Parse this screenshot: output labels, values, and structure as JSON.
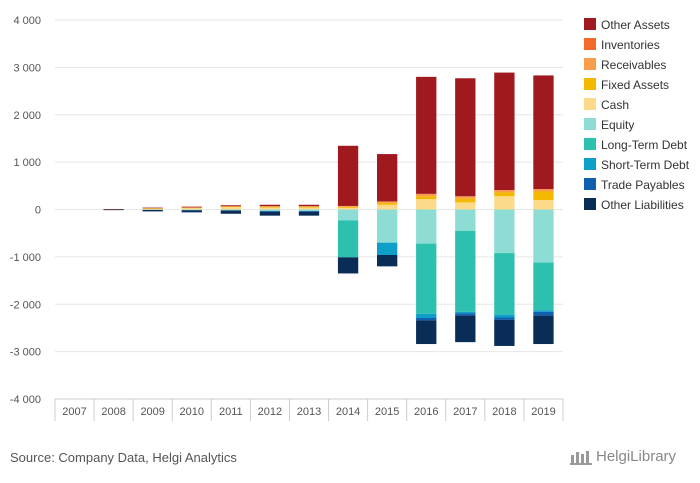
{
  "chart_data": {
    "type": "bar",
    "stacked": true,
    "categories": [
      "2007",
      "2008",
      "2009",
      "2010",
      "2011",
      "2012",
      "2013",
      "2014",
      "2015",
      "2016",
      "2017",
      "2018",
      "2019"
    ],
    "ylim": [
      -4000,
      4000
    ],
    "yticks": [
      4000,
      3000,
      2000,
      1000,
      0,
      -1000,
      -2000,
      -3000,
      -4000
    ],
    "ytick_labels": [
      "4 000",
      "3 000",
      "2 000",
      "1 000",
      "0",
      "-1 000",
      "-2 000",
      "-3 000",
      "-4 000"
    ],
    "grid": true,
    "legend_position": "right",
    "assets": [
      {
        "name": "Cash",
        "color": "#FDD98A",
        "values": [
          0,
          3,
          20,
          30,
          50,
          40,
          40,
          35,
          100,
          220,
          150,
          280,
          200
        ]
      },
      {
        "name": "Fixed Assets",
        "color": "#F5B800",
        "values": [
          0,
          2,
          5,
          10,
          15,
          20,
          20,
          20,
          40,
          60,
          80,
          80,
          180
        ]
      },
      {
        "name": "Receivables",
        "color": "#F99D4D",
        "values": [
          0,
          0,
          5,
          5,
          5,
          10,
          10,
          20,
          30,
          50,
          50,
          50,
          50
        ]
      },
      {
        "name": "Inventories",
        "color": "#F46A2A",
        "values": [
          0,
          0,
          0,
          0,
          0,
          0,
          0,
          0,
          0,
          0,
          0,
          0,
          0
        ]
      },
      {
        "name": "Other Assets",
        "color": "#A0191F",
        "values": [
          0,
          5,
          10,
          15,
          20,
          30,
          30,
          1270,
          1000,
          2470,
          2490,
          2480,
          2400
        ]
      }
    ],
    "liabilities": [
      {
        "name": "Equity",
        "color": "#8EDDD4",
        "values": [
          0,
          -3,
          -10,
          -15,
          -20,
          -30,
          -30,
          -230,
          -700,
          -720,
          -450,
          -920,
          -1120
        ]
      },
      {
        "name": "Long-Term Debt",
        "color": "#2EC0AE",
        "values": [
          0,
          0,
          0,
          0,
          0,
          0,
          0,
          -780,
          0,
          -1480,
          -1710,
          -1300,
          -1010
        ]
      },
      {
        "name": "Short-Term Debt",
        "color": "#0E9FC9",
        "values": [
          0,
          0,
          0,
          0,
          0,
          0,
          0,
          0,
          -260,
          -90,
          -30,
          -60,
          -30
        ]
      },
      {
        "name": "Trade Payables",
        "color": "#1060B0",
        "values": [
          0,
          0,
          0,
          0,
          0,
          -20,
          -20,
          0,
          0,
          -50,
          -50,
          -50,
          -80
        ]
      },
      {
        "name": "Other Liabilities",
        "color": "#0A2D57",
        "values": [
          0,
          -7,
          -30,
          -45,
          -70,
          -80,
          -80,
          -340,
          -240,
          -500,
          -560,
          -550,
          -600
        ]
      }
    ],
    "legend_order": [
      "Other Assets",
      "Inventories",
      "Receivables",
      "Fixed Assets",
      "Cash",
      "Equity",
      "Long-Term Debt",
      "Short-Term Debt",
      "Trade Payables",
      "Other Liabilities"
    ]
  },
  "footer": {
    "source": "Source: Company Data, Helgi Analytics",
    "brand": "HelgiLibrary"
  }
}
